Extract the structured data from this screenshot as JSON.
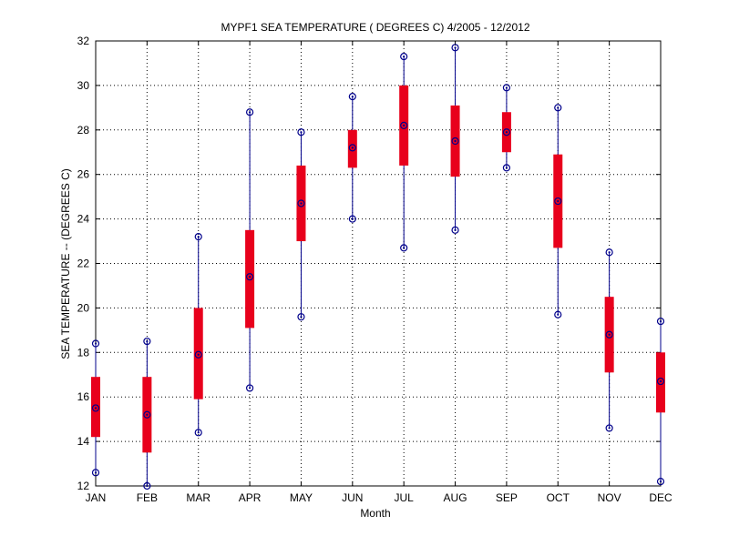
{
  "chart_data": {
    "type": "box",
    "title": "MYPF1  SEA TEMPERATURE ( DEGREES C) 4/2005 - 12/2012",
    "xlabel": "Month",
    "ylabel": "SEA TEMPERATURE -- (DEGREES C)",
    "ylim": [
      12,
      32
    ],
    "yticks": [
      "12",
      "14",
      "16",
      "18",
      "20",
      "22",
      "24",
      "26",
      "28",
      "30",
      "32"
    ],
    "ytick_values": [
      12,
      14,
      16,
      18,
      20,
      22,
      24,
      26,
      28,
      30,
      32
    ],
    "grid": true,
    "categories": [
      "JAN",
      "FEB",
      "MAR",
      "APR",
      "MAY",
      "JUN",
      "JUL",
      "AUG",
      "SEP",
      "OCT",
      "NOV",
      "DEC"
    ],
    "series": [
      {
        "min": [
          12.6,
          12.0,
          14.4,
          16.4,
          19.6,
          24.0,
          22.7,
          23.5,
          26.3,
          19.7,
          14.6,
          12.2
        ],
        "q1": [
          14.2,
          13.5,
          15.9,
          19.1,
          23.0,
          26.3,
          26.4,
          25.9,
          27.0,
          22.7,
          17.1,
          15.3
        ],
        "median": [
          15.5,
          15.2,
          17.9,
          21.4,
          24.7,
          27.2,
          28.2,
          27.5,
          27.9,
          24.8,
          18.8,
          16.7
        ],
        "q3": [
          16.9,
          16.9,
          20.0,
          23.5,
          26.4,
          28.0,
          30.0,
          29.1,
          28.8,
          26.9,
          20.5,
          18.0
        ],
        "max": [
          18.4,
          18.5,
          23.2,
          28.8,
          27.9,
          29.5,
          31.3,
          31.7,
          29.9,
          29.0,
          22.5,
          19.4
        ]
      }
    ],
    "colors": {
      "box": "#e8001c",
      "whisker": "#00008b",
      "marker": "#00008b"
    }
  }
}
